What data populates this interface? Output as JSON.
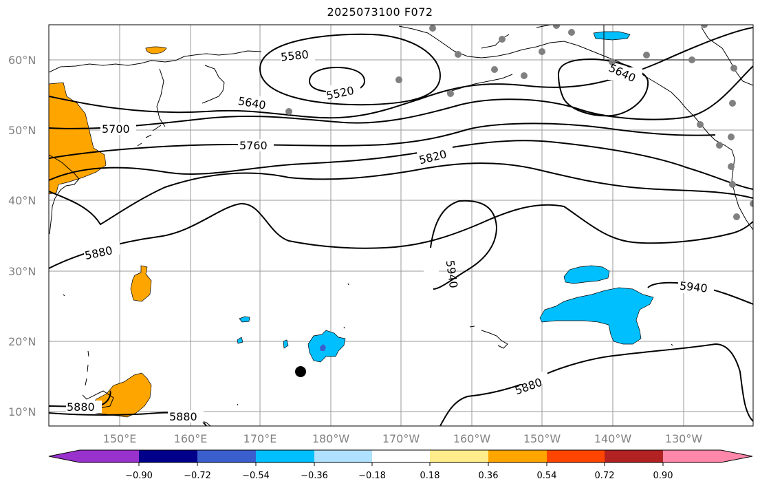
{
  "title": "2025073100 F072",
  "lat_labels": [
    "60°N",
    "50°N",
    "40°N",
    "30°N",
    "20°N",
    "10°N"
  ],
  "lon_labels": [
    "150°E",
    "160°E",
    "170°E",
    "180°W",
    "170°W",
    "160°W",
    "150°W",
    "140°W",
    "130°W"
  ],
  "contour_labels": [
    "5580",
    "5520",
    "5640",
    "5640",
    "5700",
    "5760",
    "5820",
    "5880",
    "5940",
    "5940",
    "5880",
    "5880",
    "5880"
  ],
  "colorbar": {
    "ticks": [
      "−0.90",
      "−0.72",
      "−0.54",
      "−0.36",
      "−0.18",
      "0.18",
      "0.36",
      "0.54",
      "0.72",
      "0.90"
    ],
    "colors": [
      "#9932cc",
      "#00008b",
      "#3a5fcd",
      "#00bfff",
      "#b0e2ff",
      "#ffffff",
      "#ffec8b",
      "#ffa500",
      "#ff4500",
      "#b22222",
      "#ff88aa"
    ]
  },
  "colors": {
    "contour": "#000000",
    "grid": "#999999",
    "coast": "#000000",
    "marker": "#808080",
    "positive_anomaly": "#ffa500",
    "negative_anomaly": "#00bfff"
  }
}
